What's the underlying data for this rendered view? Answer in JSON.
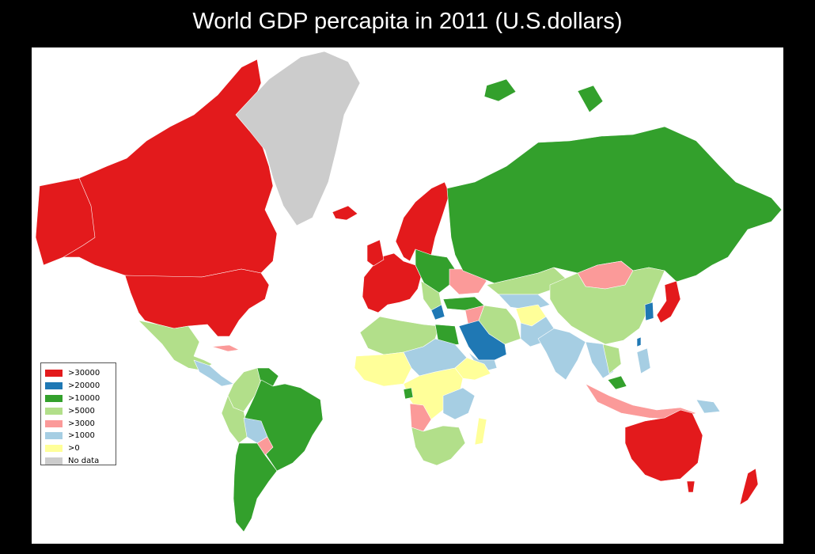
{
  "title": "World GDP percapita in 2011 (U.S.dollars)",
  "colors": {
    "gt30000": "#e31a1c",
    "gt20000": "#1f78b4",
    "gt10000": "#33a02c",
    "gt5000": "#b2df8a",
    "gt3000": "#fb9a99",
    "gt1000": "#a6cee3",
    "gt0": "#ffff99",
    "nodata": "#cccccc"
  },
  "legend": {
    "items": [
      {
        "label": ">30000",
        "color": "#e31a1c"
      },
      {
        "label": ">20000",
        "color": "#1f78b4"
      },
      {
        "label": ">10000",
        "color": "#33a02c"
      },
      {
        "label": ">5000",
        "color": "#b2df8a"
      },
      {
        "label": ">3000",
        "color": "#fb9a99"
      },
      {
        "label": ">1000",
        "color": "#a6cee3"
      },
      {
        "label": ">0",
        "color": "#ffff99"
      },
      {
        "label": "No data",
        "color": "#cccccc"
      }
    ]
  }
}
